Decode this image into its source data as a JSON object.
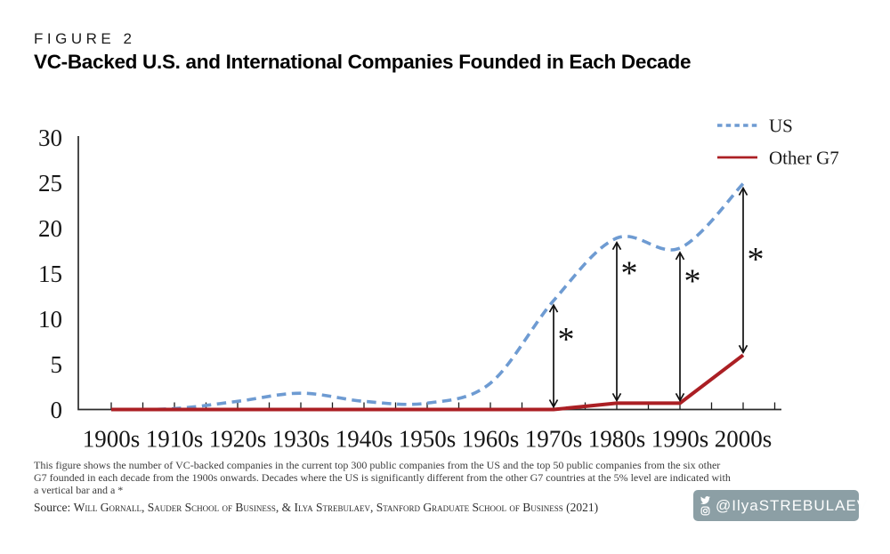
{
  "header": {
    "figure_label": "FIGURE 2",
    "title": "VC-Backed U.S. and International Companies Founded in Each Decade"
  },
  "chart_data": {
    "type": "line",
    "categories": [
      "1900s",
      "1910s",
      "1920s",
      "1930s",
      "1940s",
      "1950s",
      "1960s",
      "1970s",
      "1980s",
      "1990s",
      "2000s"
    ],
    "series": [
      {
        "name": "US",
        "color": "#6E9BD2",
        "line_style": "dashed",
        "values": [
          0,
          0.1,
          0.9,
          1.8,
          0.9,
          0.7,
          2.9,
          12,
          18.9,
          17.8,
          24.9
        ]
      },
      {
        "name": "Other G7",
        "color": "#AB1F24",
        "line_style": "solid",
        "values": [
          0,
          0,
          0,
          0,
          0,
          0,
          0,
          0,
          0.7,
          0.7,
          6
        ]
      }
    ],
    "ylim": [
      0,
      30
    ],
    "ytick_step": 5,
    "grid": false,
    "legend_position": "top-right",
    "axis_color": "#2b2b2b",
    "significance_annotations": [
      {
        "category": "1970s",
        "index": 7,
        "symbol": "*",
        "star_value": 8.7
      },
      {
        "category": "1980s",
        "index": 8,
        "symbol": "*",
        "star_value": 16
      },
      {
        "category": "1990s",
        "index": 9,
        "symbol": "*",
        "star_value": 15.1
      },
      {
        "category": "2000s",
        "index": 10,
        "symbol": "*",
        "star_value": 17.5
      }
    ]
  },
  "footnote": {
    "lines": [
      "This figure shows the number of VC-backed companies in the current top 300 public companies from the US and the top 50 public companies from the six other",
      "G7 founded in each decade from the 1900s onwards. Decades where the US is significantly different from the other G7 countries at the 5% level are indicated with",
      "a vertical bar and a *"
    ]
  },
  "source": {
    "label": "Source: ",
    "text": "Will Gornall, Sauder School of Business, & Ilya Strebulaev, Stanford Graduate School of Business (2021)"
  },
  "badge": {
    "handle": "@IlyaSTREBULAEV",
    "background": "#8C9FA5",
    "icons": [
      "twitter-icon",
      "instagram-icon"
    ]
  }
}
